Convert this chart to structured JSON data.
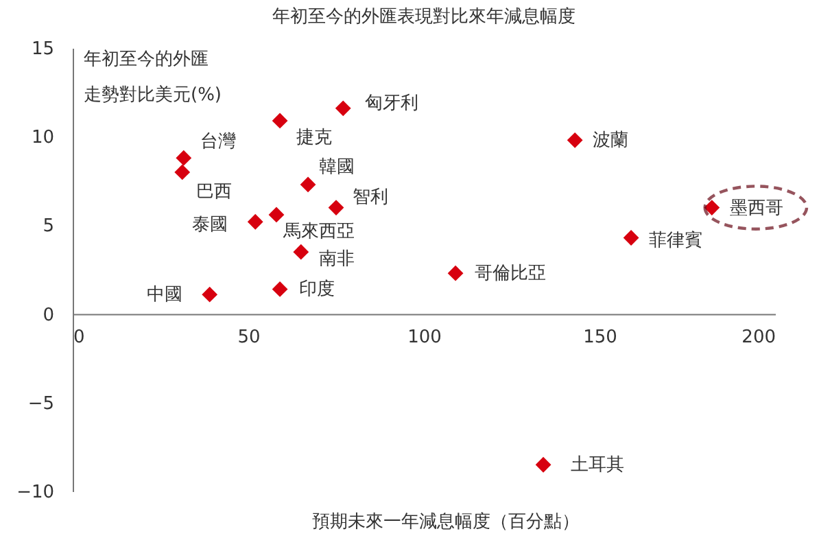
{
  "chart_data": {
    "type": "scatter",
    "title": "年初至今的外匯表現對比來年減息幅度",
    "xlabel": "預期未來一年減息幅度（百分點）",
    "ylabel": "年初至今的外匯走勢對比美元(%)",
    "x": [
      31.6,
      31.2,
      59,
      77,
      67,
      75,
      52,
      58,
      65,
      59,
      39,
      143,
      182,
      159,
      109,
      134
    ],
    "series": [
      {
        "color": "#d7000f",
        "values": [
          8.8,
          8.0,
          10.9,
          11.6,
          7.3,
          6.0,
          5.2,
          5.6,
          3.5,
          1.4,
          1.1,
          9.8,
          6.0,
          4.3,
          2.3,
          -8.5
        ]
      }
    ],
    "marker": "diamond",
    "grid": false,
    "xlim": [
      0,
      200
    ],
    "xticks": [
      0,
      50,
      100,
      150,
      200
    ],
    "ylim": [
      -10,
      15
    ],
    "yticks": [
      -10,
      -5,
      0,
      5,
      10,
      15
    ],
    "annotations": [
      {
        "text": "台灣",
        "x": 31.6,
        "y": 8.8
      },
      {
        "text": "巴西",
        "x": 31.2,
        "y": 8.0
      },
      {
        "text": "捷克",
        "x": 59,
        "y": 10.9
      },
      {
        "text": "匈牙利",
        "x": 77,
        "y": 11.6
      },
      {
        "text": "韓國",
        "x": 67,
        "y": 7.3
      },
      {
        "text": "智利",
        "x": 75,
        "y": 6.0
      },
      {
        "text": "泰國",
        "x": 52,
        "y": 5.2
      },
      {
        "text": "馬來西亞",
        "x": 58,
        "y": 5.6
      },
      {
        "text": "南非",
        "x": 65,
        "y": 3.5
      },
      {
        "text": "印度",
        "x": 59,
        "y": 1.4
      },
      {
        "text": "中國",
        "x": 39,
        "y": 1.1
      },
      {
        "text": "波蘭",
        "x": 143,
        "y": 9.8
      },
      {
        "text": "墨西哥",
        "x": 182,
        "y": 6.0
      },
      {
        "text": "菲律賓",
        "x": 159,
        "y": 4.3
      },
      {
        "text": "哥倫比亞",
        "x": 109,
        "y": 2.3
      },
      {
        "text": "土耳其",
        "x": 134,
        "y": -8.5
      }
    ]
  }
}
